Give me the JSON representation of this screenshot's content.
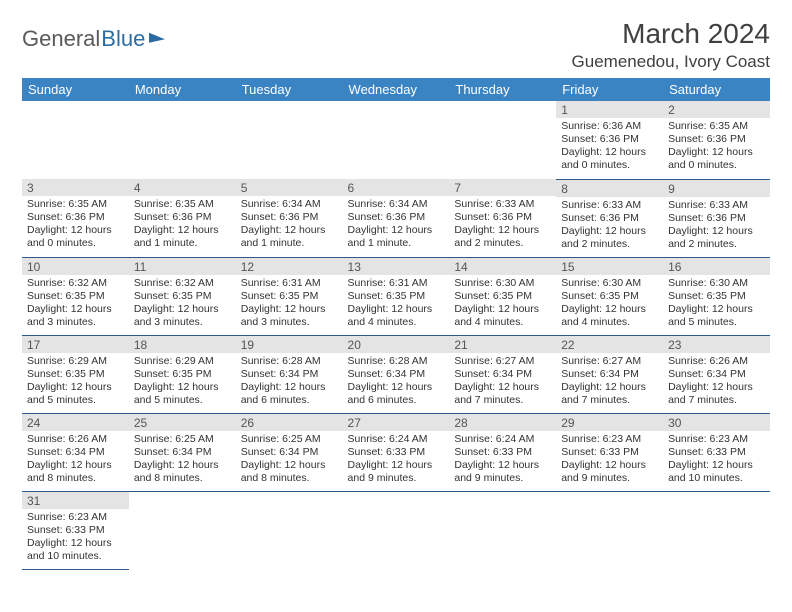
{
  "logo": {
    "text1": "General",
    "text2": "Blue"
  },
  "title": "March 2024",
  "location": "Guemenedou, Ivory Coast",
  "colors": {
    "header_bg": "#3b84c4",
    "header_text": "#ffffff",
    "daynum_bg": "#e4e4e4",
    "row_border": "#2d5a8a",
    "logo_gray": "#5a5a5a",
    "logo_blue": "#2d6ca2"
  },
  "weekdays": [
    "Sunday",
    "Monday",
    "Tuesday",
    "Wednesday",
    "Thursday",
    "Friday",
    "Saturday"
  ],
  "weeks": [
    [
      null,
      null,
      null,
      null,
      null,
      {
        "n": "1",
        "sr": "Sunrise: 6:36 AM",
        "ss": "Sunset: 6:36 PM",
        "d1": "Daylight: 12 hours",
        "d2": "and 0 minutes."
      },
      {
        "n": "2",
        "sr": "Sunrise: 6:35 AM",
        "ss": "Sunset: 6:36 PM",
        "d1": "Daylight: 12 hours",
        "d2": "and 0 minutes."
      }
    ],
    [
      {
        "n": "3",
        "sr": "Sunrise: 6:35 AM",
        "ss": "Sunset: 6:36 PM",
        "d1": "Daylight: 12 hours",
        "d2": "and 0 minutes."
      },
      {
        "n": "4",
        "sr": "Sunrise: 6:35 AM",
        "ss": "Sunset: 6:36 PM",
        "d1": "Daylight: 12 hours",
        "d2": "and 1 minute."
      },
      {
        "n": "5",
        "sr": "Sunrise: 6:34 AM",
        "ss": "Sunset: 6:36 PM",
        "d1": "Daylight: 12 hours",
        "d2": "and 1 minute."
      },
      {
        "n": "6",
        "sr": "Sunrise: 6:34 AM",
        "ss": "Sunset: 6:36 PM",
        "d1": "Daylight: 12 hours",
        "d2": "and 1 minute."
      },
      {
        "n": "7",
        "sr": "Sunrise: 6:33 AM",
        "ss": "Sunset: 6:36 PM",
        "d1": "Daylight: 12 hours",
        "d2": "and 2 minutes."
      },
      {
        "n": "8",
        "sr": "Sunrise: 6:33 AM",
        "ss": "Sunset: 6:36 PM",
        "d1": "Daylight: 12 hours",
        "d2": "and 2 minutes."
      },
      {
        "n": "9",
        "sr": "Sunrise: 6:33 AM",
        "ss": "Sunset: 6:36 PM",
        "d1": "Daylight: 12 hours",
        "d2": "and 2 minutes."
      }
    ],
    [
      {
        "n": "10",
        "sr": "Sunrise: 6:32 AM",
        "ss": "Sunset: 6:35 PM",
        "d1": "Daylight: 12 hours",
        "d2": "and 3 minutes."
      },
      {
        "n": "11",
        "sr": "Sunrise: 6:32 AM",
        "ss": "Sunset: 6:35 PM",
        "d1": "Daylight: 12 hours",
        "d2": "and 3 minutes."
      },
      {
        "n": "12",
        "sr": "Sunrise: 6:31 AM",
        "ss": "Sunset: 6:35 PM",
        "d1": "Daylight: 12 hours",
        "d2": "and 3 minutes."
      },
      {
        "n": "13",
        "sr": "Sunrise: 6:31 AM",
        "ss": "Sunset: 6:35 PM",
        "d1": "Daylight: 12 hours",
        "d2": "and 4 minutes."
      },
      {
        "n": "14",
        "sr": "Sunrise: 6:30 AM",
        "ss": "Sunset: 6:35 PM",
        "d1": "Daylight: 12 hours",
        "d2": "and 4 minutes."
      },
      {
        "n": "15",
        "sr": "Sunrise: 6:30 AM",
        "ss": "Sunset: 6:35 PM",
        "d1": "Daylight: 12 hours",
        "d2": "and 4 minutes."
      },
      {
        "n": "16",
        "sr": "Sunrise: 6:30 AM",
        "ss": "Sunset: 6:35 PM",
        "d1": "Daylight: 12 hours",
        "d2": "and 5 minutes."
      }
    ],
    [
      {
        "n": "17",
        "sr": "Sunrise: 6:29 AM",
        "ss": "Sunset: 6:35 PM",
        "d1": "Daylight: 12 hours",
        "d2": "and 5 minutes."
      },
      {
        "n": "18",
        "sr": "Sunrise: 6:29 AM",
        "ss": "Sunset: 6:35 PM",
        "d1": "Daylight: 12 hours",
        "d2": "and 5 minutes."
      },
      {
        "n": "19",
        "sr": "Sunrise: 6:28 AM",
        "ss": "Sunset: 6:34 PM",
        "d1": "Daylight: 12 hours",
        "d2": "and 6 minutes."
      },
      {
        "n": "20",
        "sr": "Sunrise: 6:28 AM",
        "ss": "Sunset: 6:34 PM",
        "d1": "Daylight: 12 hours",
        "d2": "and 6 minutes."
      },
      {
        "n": "21",
        "sr": "Sunrise: 6:27 AM",
        "ss": "Sunset: 6:34 PM",
        "d1": "Daylight: 12 hours",
        "d2": "and 7 minutes."
      },
      {
        "n": "22",
        "sr": "Sunrise: 6:27 AM",
        "ss": "Sunset: 6:34 PM",
        "d1": "Daylight: 12 hours",
        "d2": "and 7 minutes."
      },
      {
        "n": "23",
        "sr": "Sunrise: 6:26 AM",
        "ss": "Sunset: 6:34 PM",
        "d1": "Daylight: 12 hours",
        "d2": "and 7 minutes."
      }
    ],
    [
      {
        "n": "24",
        "sr": "Sunrise: 6:26 AM",
        "ss": "Sunset: 6:34 PM",
        "d1": "Daylight: 12 hours",
        "d2": "and 8 minutes."
      },
      {
        "n": "25",
        "sr": "Sunrise: 6:25 AM",
        "ss": "Sunset: 6:34 PM",
        "d1": "Daylight: 12 hours",
        "d2": "and 8 minutes."
      },
      {
        "n": "26",
        "sr": "Sunrise: 6:25 AM",
        "ss": "Sunset: 6:34 PM",
        "d1": "Daylight: 12 hours",
        "d2": "and 8 minutes."
      },
      {
        "n": "27",
        "sr": "Sunrise: 6:24 AM",
        "ss": "Sunset: 6:33 PM",
        "d1": "Daylight: 12 hours",
        "d2": "and 9 minutes."
      },
      {
        "n": "28",
        "sr": "Sunrise: 6:24 AM",
        "ss": "Sunset: 6:33 PM",
        "d1": "Daylight: 12 hours",
        "d2": "and 9 minutes."
      },
      {
        "n": "29",
        "sr": "Sunrise: 6:23 AM",
        "ss": "Sunset: 6:33 PM",
        "d1": "Daylight: 12 hours",
        "d2": "and 9 minutes."
      },
      {
        "n": "30",
        "sr": "Sunrise: 6:23 AM",
        "ss": "Sunset: 6:33 PM",
        "d1": "Daylight: 12 hours",
        "d2": "and 10 minutes."
      }
    ],
    [
      {
        "n": "31",
        "sr": "Sunrise: 6:23 AM",
        "ss": "Sunset: 6:33 PM",
        "d1": "Daylight: 12 hours",
        "d2": "and 10 minutes."
      },
      null,
      null,
      null,
      null,
      null,
      null
    ]
  ]
}
